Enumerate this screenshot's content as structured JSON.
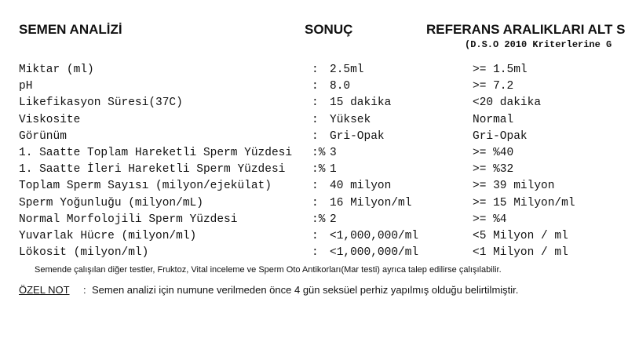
{
  "header": {
    "title": "SEMEN ANALİZİ",
    "result_heading": "SONUÇ",
    "reference_heading": "REFERANS ARALIKLARI ALT S",
    "reference_subtitle": "(D.S.O 2010 Kriterlerine G"
  },
  "table": {
    "rows": [
      [
        "Miktar (ml)",
        ":",
        "2.5ml",
        ">= 1.5ml"
      ],
      [
        "pH",
        ":",
        "8.0",
        ">= 7.2"
      ],
      [
        "Likefikasyon Süresi(37C)",
        ":",
        "15 dakika",
        "<20 dakika"
      ],
      [
        "Viskosite",
        ":",
        "Yüksek",
        "Normal"
      ],
      [
        "Görünüm",
        ":",
        "Gri-Opak",
        "Gri-Opak"
      ],
      [
        "1. Saatte Toplam Hareketli Sperm Yüzdesi",
        ":%",
        "3",
        ">= %40"
      ],
      [
        "1. Saatte İleri Hareketli Sperm Yüzdesi",
        ":%",
        "1",
        ">= %32"
      ],
      [
        "Toplam Sperm Sayısı (milyon/ejekülat)",
        ":",
        "40 milyon",
        ">= 39 milyon"
      ],
      [
        "Sperm Yoğunluğu (milyon/mL)",
        ":",
        "16 Milyon/ml",
        ">= 15 Milyon/ml"
      ],
      [
        "Normal Morfolojili Sperm Yüzdesi",
        ":%",
        "2",
        ">= %4"
      ],
      [
        "Yuvarlak Hücre (milyon/ml)",
        ":",
        "<1,000,000/ml",
        "<5 Milyon / ml"
      ],
      [
        "Lökosit (milyon/ml)",
        ":",
        "<1,000,000/ml",
        "<1 Milyon / ml"
      ]
    ]
  },
  "footnote": "Semende çalışılan diğer testler, Fruktoz, Vital inceleme ve Sperm Oto Antikorları(Mar testi) ayrıca talep edilirse çalışılabilir.",
  "note": {
    "label": "ÖZEL NOT",
    "separator": ":",
    "text": "Semen analizi için numune verilmeden önce 4 gün seksüel perhiz yapılmış olduğu belirtilmiştir."
  }
}
